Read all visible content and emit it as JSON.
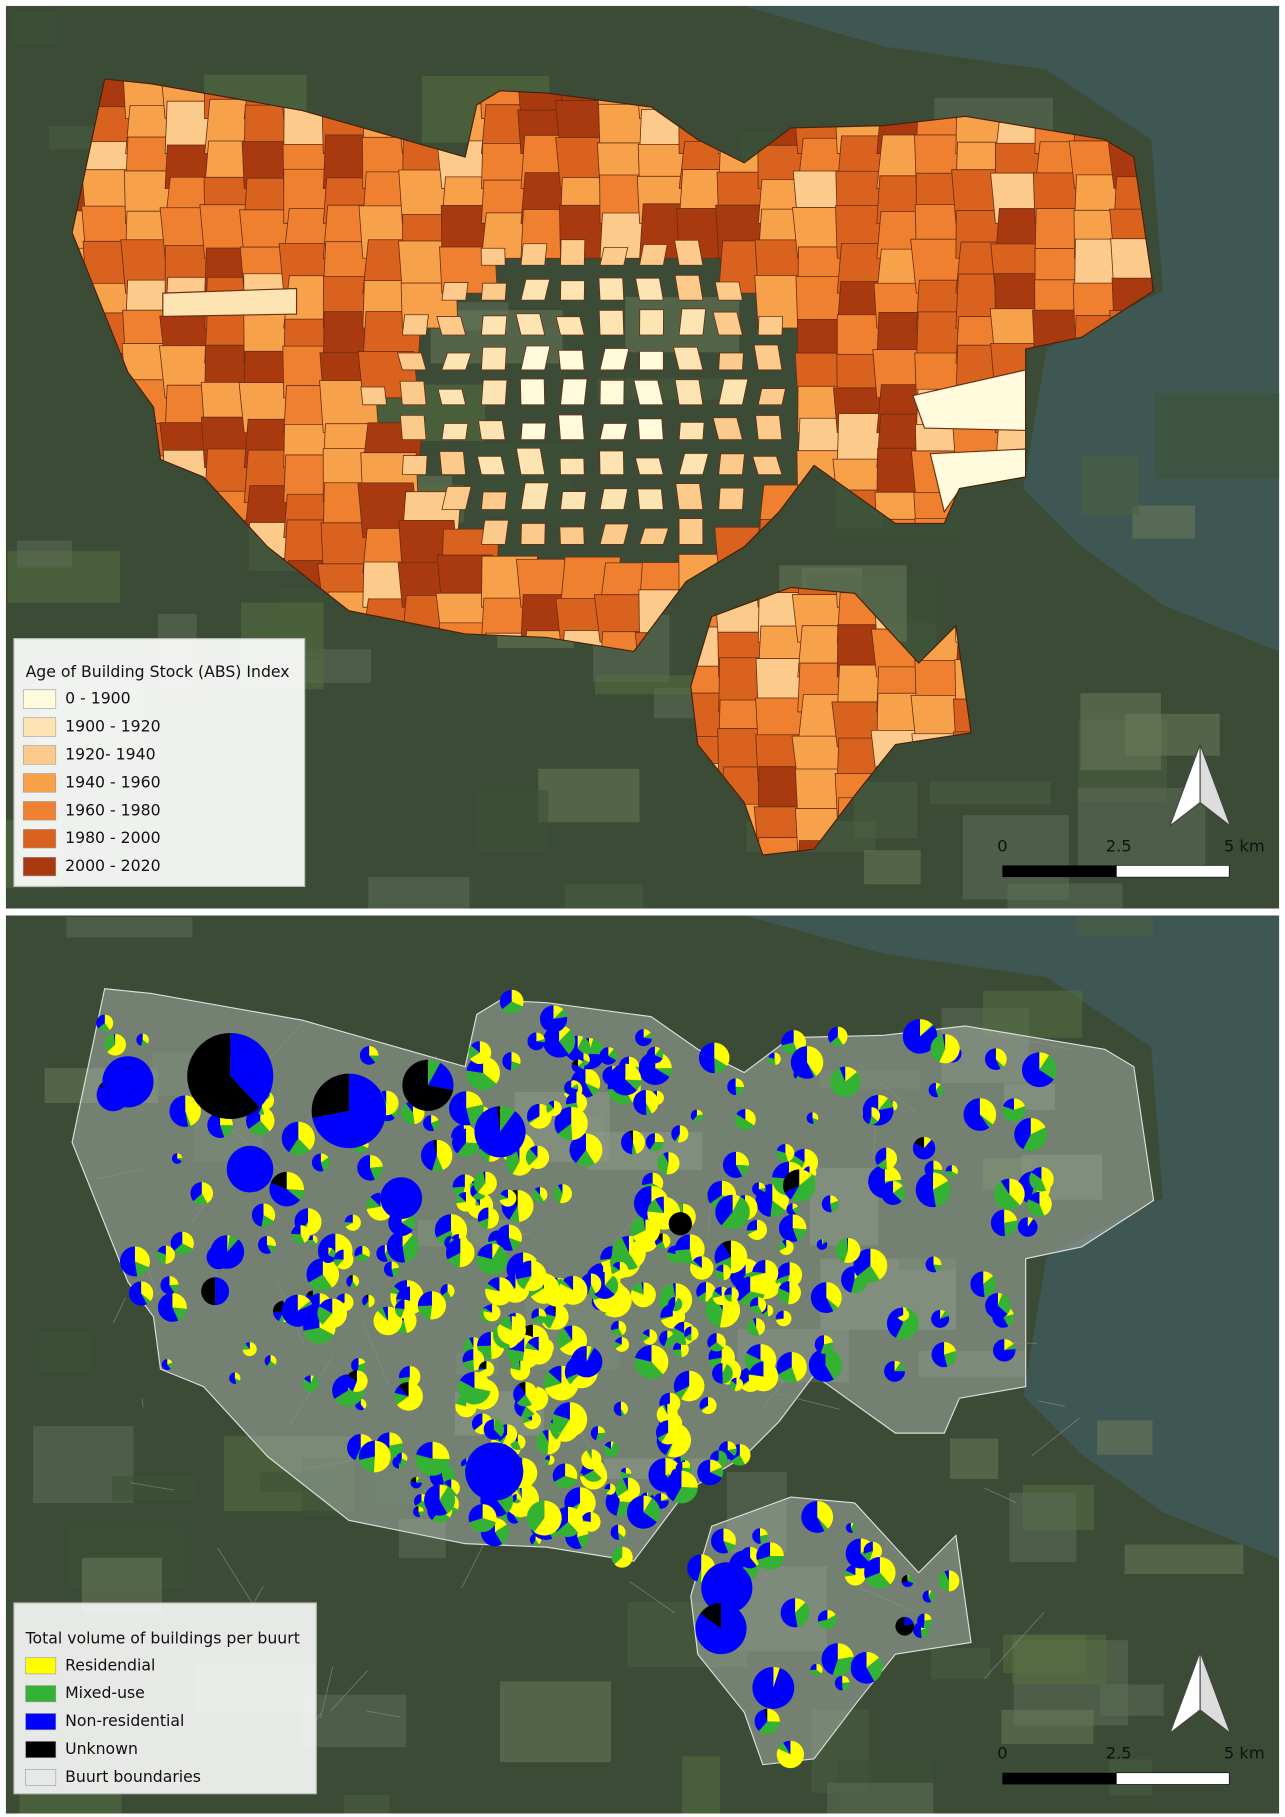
{
  "map_top": {
    "legend": {
      "title": "Age of Building Stock (ABS) Index",
      "items": [
        "0 - 1900",
        "1900 - 1920",
        "1920- 1940",
        "1940 - 1960",
        "1960 - 1980",
        "1980 - 2000",
        "2000 - 2020"
      ]
    },
    "scale_bar": {
      "labels": [
        "0",
        "2.5",
        "5 km"
      ]
    }
  },
  "map_bottom": {
    "legend": {
      "title": "Total volume of buildings per buurt",
      "items": [
        "Residendial",
        "Mixed-use",
        "Non-residential",
        "Unknown",
        "Buurt boundaries"
      ]
    },
    "scale_bar": {
      "labels": [
        "0",
        "2.5",
        "5 km"
      ]
    }
  }
}
